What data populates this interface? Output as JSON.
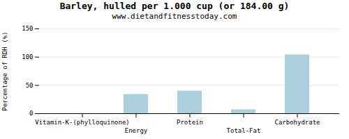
{
  "chart_data": {
    "type": "bar",
    "title": "Barley, hulled per 1.000 cup (or 184.00 g)",
    "subtitle": "www.dietandfitnesstoday.com",
    "ylabel": "Percentage of RDH (%)",
    "categories": [
      "Vitamin-K-(phylloquinone)",
      "Energy",
      "Protein",
      "Total-Fat",
      "Carbohydrate"
    ],
    "values": [
      0,
      34,
      40,
      7,
      104
    ],
    "color": "#aacfdd",
    "ylim": [
      0,
      150
    ],
    "yticks": [
      0,
      50,
      100,
      150
    ],
    "grid": true
  }
}
